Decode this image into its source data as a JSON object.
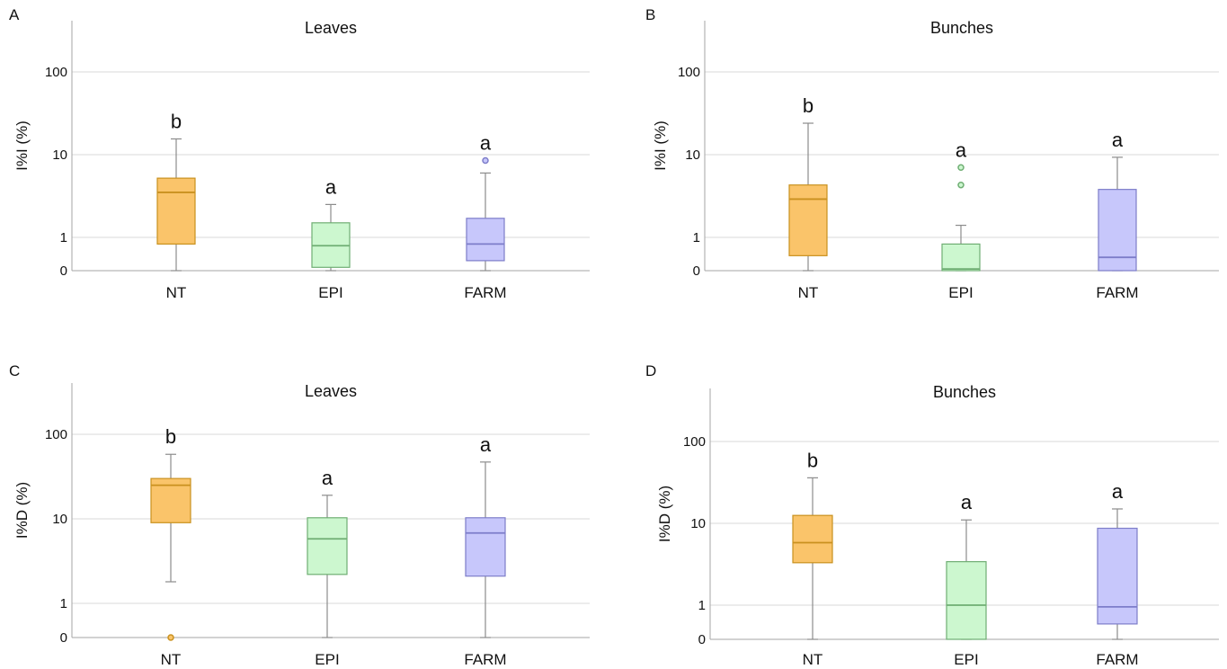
{
  "chart_data": [
    {
      "type": "boxplot",
      "panel": "A",
      "title": "Leaves",
      "ylabel": "I%I (%)",
      "yscale": "log",
      "yticks": [
        0,
        1,
        10,
        100
      ],
      "categories": [
        "NT",
        "EPI",
        "FARM"
      ],
      "boxes": [
        {
          "category": "NT",
          "min": 0,
          "q1": 0.8,
          "median": 3.5,
          "q3": 5.2,
          "max": 15.5,
          "outliers": [],
          "letter": "b",
          "color": "#fac46a",
          "edge": "#c9911f"
        },
        {
          "category": "EPI",
          "min": 0,
          "q1": 0.1,
          "median": 0.75,
          "q3": 1.5,
          "max": 2.5,
          "outliers": [],
          "letter": "a",
          "color": "#ccf7cf",
          "edge": "#6fae73"
        },
        {
          "category": "FARM",
          "min": 0,
          "q1": 0.3,
          "median": 0.8,
          "q3": 1.7,
          "max": 6.0,
          "outliers": [
            8.5
          ],
          "letter": "a",
          "color": "#c7c7fb",
          "edge": "#7d7dc9"
        }
      ]
    },
    {
      "type": "boxplot",
      "panel": "B",
      "title": "Bunches",
      "ylabel": "I%I (%)",
      "yscale": "log",
      "yticks": [
        0,
        1,
        10,
        100
      ],
      "categories": [
        "NT",
        "EPI",
        "FARM"
      ],
      "boxes": [
        {
          "category": "NT",
          "min": 0,
          "q1": 0.45,
          "median": 2.9,
          "q3": 4.3,
          "max": 24.0,
          "outliers": [],
          "letter": "b",
          "color": "#fac46a",
          "edge": "#c9911f"
        },
        {
          "category": "EPI",
          "min": 0,
          "q1": 0,
          "median": 0.05,
          "q3": 0.8,
          "max": 1.4,
          "outliers": [
            4.3,
            7.0
          ],
          "letter": "a",
          "color": "#ccf7cf",
          "edge": "#6fae73"
        },
        {
          "category": "FARM",
          "min": 0,
          "q1": 0,
          "median": 0.4,
          "q3": 3.8,
          "max": 9.3,
          "outliers": [],
          "letter": "a",
          "color": "#c7c7fb",
          "edge": "#7d7dc9"
        }
      ]
    },
    {
      "type": "boxplot",
      "panel": "C",
      "title": "Leaves",
      "ylabel": "I%D (%)",
      "yscale": "log",
      "yticks": [
        0,
        1,
        10,
        100
      ],
      "categories": [
        "NT",
        "EPI",
        "FARM"
      ],
      "boxes": [
        {
          "category": "NT",
          "min": 1.8,
          "q1": 9.0,
          "median": 25.0,
          "q3": 30.0,
          "max": 58.0,
          "outliers": [
            0
          ],
          "letter": "b",
          "color": "#fac46a",
          "edge": "#c9911f"
        },
        {
          "category": "EPI",
          "min": 0,
          "q1": 2.2,
          "median": 5.8,
          "q3": 10.3,
          "max": 19.0,
          "outliers": [],
          "letter": "a",
          "color": "#ccf7cf",
          "edge": "#6fae73"
        },
        {
          "category": "FARM",
          "min": 0,
          "q1": 2.1,
          "median": 6.8,
          "q3": 10.3,
          "max": 47.0,
          "outliers": [],
          "letter": "a",
          "color": "#c7c7fb",
          "edge": "#7d7dc9"
        }
      ]
    },
    {
      "type": "boxplot",
      "panel": "D",
      "title": "Bunches",
      "ylabel": "I%D (%)",
      "yscale": "log",
      "yticks": [
        0,
        1,
        10,
        100
      ],
      "categories": [
        "NT",
        "EPI",
        "FARM"
      ],
      "boxes": [
        {
          "category": "NT",
          "min": 0,
          "q1": 3.3,
          "median": 5.8,
          "q3": 12.5,
          "max": 36.0,
          "outliers": [],
          "letter": "b",
          "color": "#fac46a",
          "edge": "#c9911f"
        },
        {
          "category": "EPI",
          "min": 0,
          "q1": 0,
          "median": 1.0,
          "q3": 3.4,
          "max": 11.0,
          "outliers": [],
          "letter": "a",
          "color": "#ccf7cf",
          "edge": "#6fae73"
        },
        {
          "category": "FARM",
          "min": 0,
          "q1": 0.45,
          "median": 0.95,
          "q3": 8.7,
          "max": 15.0,
          "outliers": [],
          "letter": "a",
          "color": "#c7c7fb",
          "edge": "#7d7dc9"
        }
      ]
    }
  ]
}
